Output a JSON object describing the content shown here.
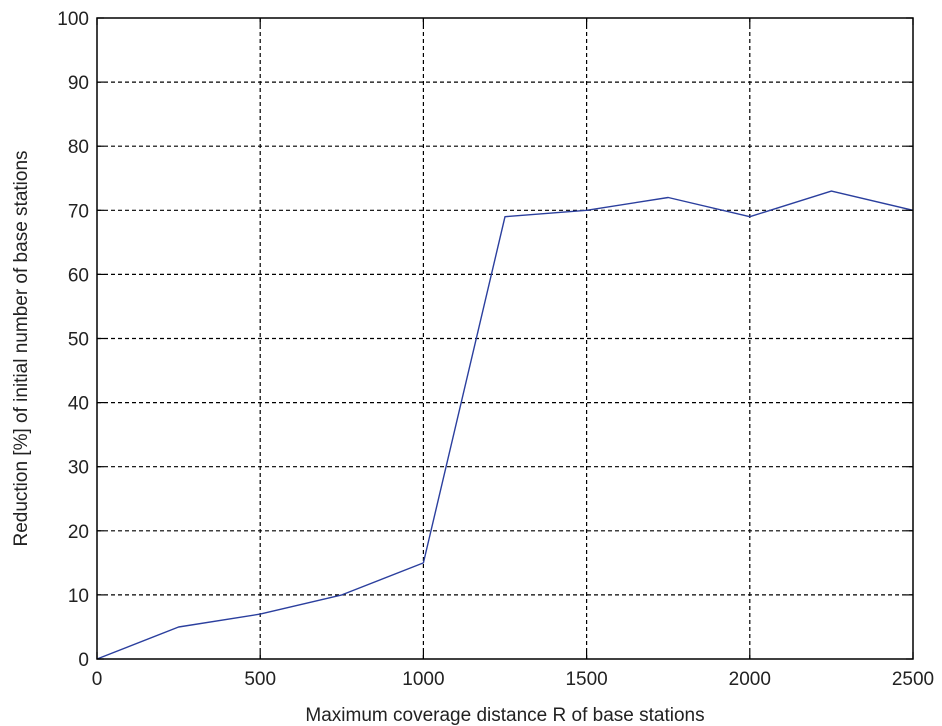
{
  "chart_data": {
    "type": "line",
    "title": "",
    "xlabel": "Maximum coverage distance R of base stations",
    "ylabel": "Reduction [%] of initial number of base stations",
    "xlim": [
      0,
      2500
    ],
    "ylim": [
      0,
      100
    ],
    "x_ticks": [
      0,
      500,
      1000,
      1500,
      2000,
      2500
    ],
    "x_tick_labels": [
      "0",
      "500",
      "1000",
      "1500",
      "2000",
      "2500"
    ],
    "y_ticks": [
      0,
      10,
      20,
      30,
      40,
      50,
      60,
      70,
      80,
      90,
      100
    ],
    "y_tick_labels": [
      "0",
      "10",
      "20",
      "30",
      "40",
      "50",
      "60",
      "70",
      "80",
      "90",
      "100"
    ],
    "grid": true,
    "grid_style": "dashed",
    "legend": false,
    "series": [
      {
        "color": "#2b3f9e",
        "x": [
          0,
          250,
          500,
          750,
          1000,
          1250,
          1500,
          1750,
          2000,
          2250,
          2500
        ],
        "y": [
          0,
          5,
          7,
          10,
          15,
          69,
          70,
          72,
          69,
          73,
          70
        ]
      }
    ]
  }
}
